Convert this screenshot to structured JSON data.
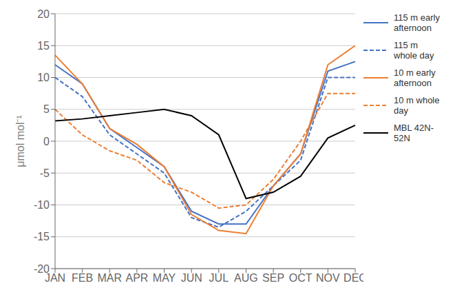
{
  "chart_data": {
    "type": "line",
    "categories": [
      "JAN",
      "FEB",
      "MAR",
      "APR",
      "MAY",
      "JUN",
      "JUL",
      "AUG",
      "SEP",
      "OCT",
      "NOV",
      "DEC"
    ],
    "series": [
      {
        "name": "115 m early\nafternoon",
        "color": "#4472C4",
        "line_style": "solid",
        "values": [
          12,
          9,
          2,
          -1,
          -4,
          -11,
          -13,
          -13,
          -7,
          -2,
          11,
          12.5
        ]
      },
      {
        "name": "115 m\nwhole day",
        "color": "#4472C4",
        "line_style": "dashed",
        "values": [
          10,
          7,
          1,
          -2,
          -5,
          -12,
          -13.5,
          -11,
          -7,
          -3,
          10,
          10
        ]
      },
      {
        "name": "10 m early\nafternoon",
        "color": "#ED7D31",
        "line_style": "solid",
        "values": [
          13.5,
          9,
          2,
          -0.5,
          -4,
          -11.5,
          -14,
          -14.5,
          -7,
          -2,
          12,
          15
        ]
      },
      {
        "name": "10 m whole\nday",
        "color": "#ED7D31",
        "line_style": "dashed",
        "values": [
          5,
          1,
          -1.5,
          -3,
          -6.5,
          -8,
          -10.5,
          -10,
          -6,
          0,
          7.5,
          7.5
        ]
      },
      {
        "name": "MBL 42N-\n52N",
        "color": "#000000",
        "line_style": "solid",
        "values": [
          3.2,
          3.5,
          4.0,
          4.5,
          5.0,
          4.0,
          1.0,
          -9.0,
          -8.0,
          -5.5,
          0.5,
          2.5
        ]
      }
    ],
    "y_label": "μmol mol⁻¹",
    "ylim": [
      -20,
      20
    ],
    "yticks": [
      -20,
      -15,
      -10,
      -5,
      0,
      5,
      10,
      15,
      20
    ],
    "grid": true,
    "legend": "right"
  }
}
